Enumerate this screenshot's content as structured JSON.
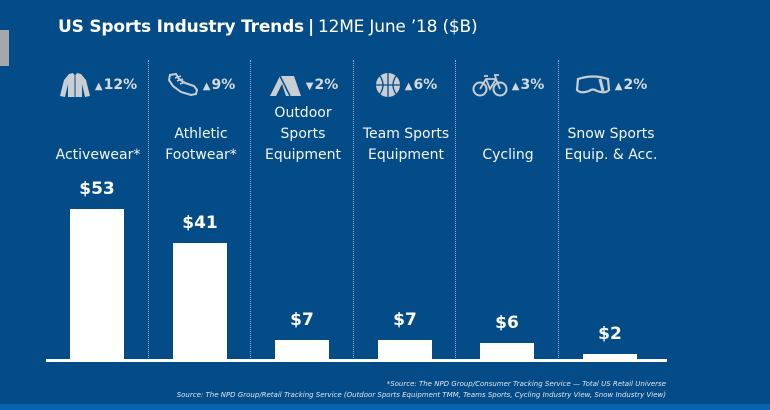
{
  "title": {
    "main": "US Sports Industry Trends",
    "separator": "|",
    "sub": "12ME June ’18 ($B)"
  },
  "colors": {
    "background": "#044c87",
    "bar": "#ffffff",
    "text": "#ffffff",
    "icon": "#c9ced4"
  },
  "chart_data": {
    "type": "bar",
    "title": "US Sports Industry Trends | 12ME June ’18 ($B)",
    "xlabel": "",
    "ylabel": "",
    "unit": "$B",
    "ylim": [
      0,
      55
    ],
    "grid": false,
    "categories": [
      "Activewear*",
      "Athletic Footwear*",
      "Outdoor Sports Equipment",
      "Team Sports Equipment",
      "Cycling",
      "Snow Sports Equip. & Acc."
    ],
    "values": [
      53,
      41,
      7,
      7,
      6,
      2
    ],
    "value_labels": [
      "$53",
      "$41",
      "$7",
      "$7",
      "$6",
      "$2"
    ],
    "changes": [
      {
        "direction": "up",
        "symbol": "▲",
        "text": "12%",
        "icon": "jacket-icon"
      },
      {
        "direction": "up",
        "symbol": "▲",
        "text": "9%",
        "icon": "sneaker-icon"
      },
      {
        "direction": "down",
        "symbol": "▼",
        "text": "2%",
        "icon": "tent-icon"
      },
      {
        "direction": "up",
        "symbol": "▲",
        "text": "6%",
        "icon": "basketball-icon"
      },
      {
        "direction": "up",
        "symbol": "▲",
        "text": "3%",
        "icon": "bicycle-icon"
      },
      {
        "direction": "up",
        "symbol": "▲",
        "text": "2%",
        "icon": "goggles-icon"
      }
    ],
    "label_lines": [
      [
        "Activewear*"
      ],
      [
        "Athletic",
        "Footwear*"
      ],
      [
        "Outdoor",
        "Sports",
        "Equipment"
      ],
      [
        "Team Sports",
        "Equipment"
      ],
      [
        "Cycling"
      ],
      [
        "Snow Sports",
        "Equip. & Acc."
      ]
    ]
  },
  "footnotes": {
    "source1": "*Source: The NPD Group/Consumer Tracking Service — Total US Retail Universe",
    "source2": "Source: The NPD Group/Retail Tracking Service (Outdoor Sports Equipment TMM, Teams Sports, Cycling Industry View, Snow Industry View)"
  }
}
